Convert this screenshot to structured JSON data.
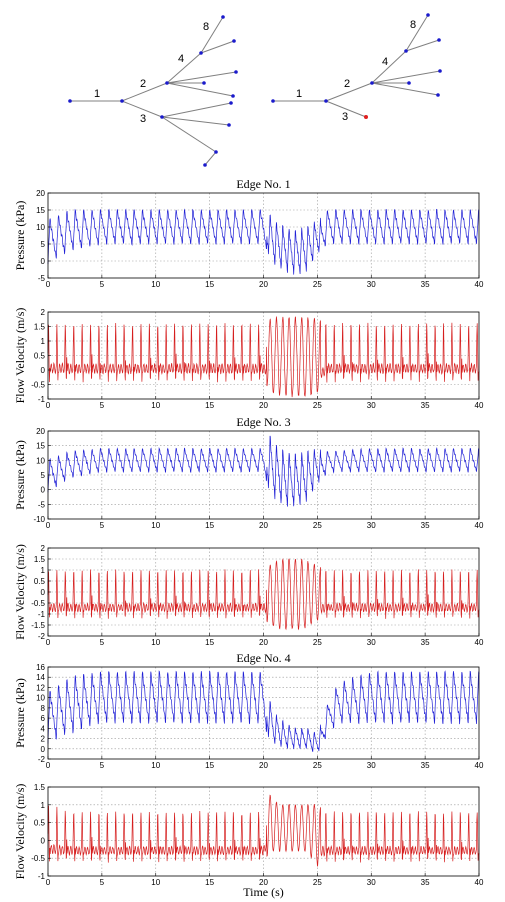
{
  "colors": {
    "pressure": "#1f1fd6",
    "velocity": "#d61f1f",
    "tree_edge": "#808080",
    "tree_node": "#1a1acc",
    "tree_node_highlight": "#e02020",
    "grid": "#9a9a9a"
  },
  "trees": [
    {
      "edge_labels": [
        "1",
        "2",
        "3",
        "4",
        "8"
      ],
      "highlight_node": false
    },
    {
      "edge_labels": [
        "1",
        "2",
        "3",
        "4",
        "8"
      ],
      "highlight_node": true
    }
  ],
  "chart_data": [
    {
      "type": "line",
      "title": "Edge No. 1",
      "ylabel": "Pressure (kPa)",
      "xlabel": "",
      "xlim": [
        0,
        40
      ],
      "ylim": [
        -5,
        20
      ],
      "xticks": [
        0,
        5,
        10,
        15,
        20,
        25,
        30,
        35,
        40
      ],
      "yticks": [
        -5,
        0,
        5,
        10,
        15,
        20
      ],
      "grid": true,
      "series": [
        {
          "color": "pressure",
          "x": [
            0,
            2,
            5,
            10,
            15,
            20,
            20.5,
            21,
            22,
            23,
            24,
            25,
            26,
            30,
            35,
            40
          ],
          "y_max": [
            12,
            15,
            15,
            15,
            15,
            15,
            14,
            12,
            10,
            9,
            10,
            12,
            15,
            15,
            15,
            15
          ],
          "y_min": [
            -1,
            3,
            5,
            5,
            5,
            5,
            2,
            -1,
            -3,
            -4,
            -3,
            2,
            5,
            5,
            5,
            5
          ]
        }
      ]
    },
    {
      "type": "line",
      "title": "",
      "ylabel": "Flow Velocity (m/s)",
      "xlabel": "",
      "xlim": [
        0,
        40
      ],
      "ylim": [
        -1,
        2
      ],
      "xticks": [
        0,
        5,
        10,
        15,
        20,
        25,
        30,
        35,
        40
      ],
      "yticks": [
        -1,
        -0.5,
        0,
        0.5,
        1,
        1.5,
        2
      ],
      "grid": true,
      "series": [
        {
          "color": "velocity",
          "x": [
            0,
            2,
            5,
            10,
            15,
            20,
            20.5,
            21,
            22,
            23,
            24,
            25,
            26,
            30,
            35,
            40
          ],
          "y_max": [
            1.6,
            1.6,
            1.6,
            1.6,
            1.6,
            1.6,
            1.7,
            1.8,
            1.8,
            1.8,
            1.8,
            1.8,
            1.6,
            1.6,
            1.6,
            1.6
          ],
          "y_min": [
            -0.4,
            -0.4,
            -0.4,
            -0.4,
            -0.4,
            -0.4,
            -0.6,
            -0.8,
            -0.9,
            -0.9,
            -0.9,
            -0.8,
            -0.4,
            -0.4,
            -0.4,
            -0.4
          ]
        }
      ]
    },
    {
      "type": "line",
      "title": "Edge No. 3",
      "ylabel": "Pressure (kPa)",
      "xlabel": "",
      "xlim": [
        0,
        40
      ],
      "ylim": [
        -10,
        20
      ],
      "xticks": [
        0,
        5,
        10,
        15,
        20,
        25,
        30,
        35,
        40
      ],
      "yticks": [
        -10,
        -5,
        0,
        5,
        10,
        15,
        20
      ],
      "grid": true,
      "series": [
        {
          "color": "pressure",
          "x": [
            0,
            2,
            5,
            10,
            15,
            20,
            20.5,
            21,
            22,
            23,
            24,
            25,
            26,
            30,
            35,
            40
          ],
          "y_max": [
            10,
            13,
            14,
            14,
            14,
            14,
            19,
            16,
            13,
            12,
            13,
            14,
            13,
            14,
            14,
            14
          ],
          "y_min": [
            -1,
            4,
            6,
            6,
            6,
            6,
            0,
            -3,
            -6,
            -6,
            -4,
            2,
            6,
            6,
            6,
            6
          ]
        }
      ]
    },
    {
      "type": "line",
      "title": "",
      "ylabel": "Flow Velocity (m/s)",
      "xlabel": "",
      "xlim": [
        0,
        40
      ],
      "ylim": [
        -2,
        2
      ],
      "xticks": [
        0,
        5,
        10,
        15,
        20,
        25,
        30,
        35,
        40
      ],
      "yticks": [
        -2,
        -1.5,
        -1,
        -0.5,
        0,
        0.5,
        1,
        1.5,
        2
      ],
      "grid": true,
      "series": [
        {
          "color": "velocity",
          "x": [
            0,
            2,
            5,
            10,
            15,
            20,
            20.5,
            21,
            22,
            23,
            24,
            25,
            26,
            30,
            35,
            40
          ],
          "y_max": [
            1.0,
            1.0,
            1.0,
            1.0,
            1.0,
            1.0,
            1.2,
            1.4,
            1.5,
            1.5,
            1.4,
            1.2,
            1.0,
            1.0,
            1.0,
            1.0
          ],
          "y_min": [
            -1.2,
            -1.2,
            -1.2,
            -1.2,
            -1.2,
            -1.2,
            -1.4,
            -1.6,
            -1.7,
            -1.7,
            -1.6,
            -1.3,
            -1.2,
            -1.2,
            -1.2,
            -1.2
          ]
        }
      ]
    },
    {
      "type": "line",
      "title": "Edge No. 4",
      "ylabel": "Pressure (kPa)",
      "xlabel": "",
      "xlim": [
        0,
        40
      ],
      "ylim": [
        -2,
        16
      ],
      "xticks": [
        0,
        5,
        10,
        15,
        20,
        25,
        30,
        35,
        40
      ],
      "yticks": [
        -2,
        0,
        2,
        4,
        6,
        8,
        10,
        12,
        14,
        16
      ],
      "grid": true,
      "series": [
        {
          "color": "pressure",
          "x": [
            0,
            2,
            5,
            10,
            15,
            20,
            20.5,
            21,
            22,
            23,
            24,
            25,
            26,
            27,
            30,
            35,
            40
          ],
          "y_max": [
            11,
            14,
            15,
            15,
            15,
            15,
            10,
            7,
            5,
            4,
            4,
            3,
            9,
            13,
            15,
            15,
            15
          ],
          "y_min": [
            1,
            3,
            5,
            5,
            5,
            5,
            2,
            1,
            0,
            0,
            0,
            -1,
            3,
            5,
            5,
            5,
            5
          ]
        }
      ]
    },
    {
      "type": "line",
      "title": "",
      "ylabel": "Flow Velocity (m/s)",
      "xlabel": "Time (s)",
      "xlim": [
        0,
        40
      ],
      "ylim": [
        -1,
        1.5
      ],
      "xticks": [
        0,
        5,
        10,
        15,
        20,
        25,
        30,
        35,
        40
      ],
      "yticks": [
        -1,
        -0.5,
        0,
        0.5,
        1,
        1.5
      ],
      "grid": true,
      "series": [
        {
          "color": "velocity",
          "x": [
            0,
            2,
            5,
            10,
            15,
            20,
            20.5,
            21,
            22,
            23,
            24,
            25,
            26,
            30,
            35,
            40
          ],
          "y_max": [
            1.0,
            0.8,
            0.8,
            0.8,
            0.8,
            0.8,
            1.3,
            1.1,
            1.0,
            1.0,
            1.0,
            1.0,
            0.8,
            0.8,
            0.8,
            0.8
          ],
          "y_min": [
            -0.6,
            -0.6,
            -0.6,
            -0.6,
            -0.6,
            -0.6,
            -0.4,
            -0.3,
            -0.3,
            -0.3,
            -0.3,
            -0.7,
            -0.6,
            -0.6,
            -0.6,
            -0.6
          ]
        }
      ]
    }
  ]
}
